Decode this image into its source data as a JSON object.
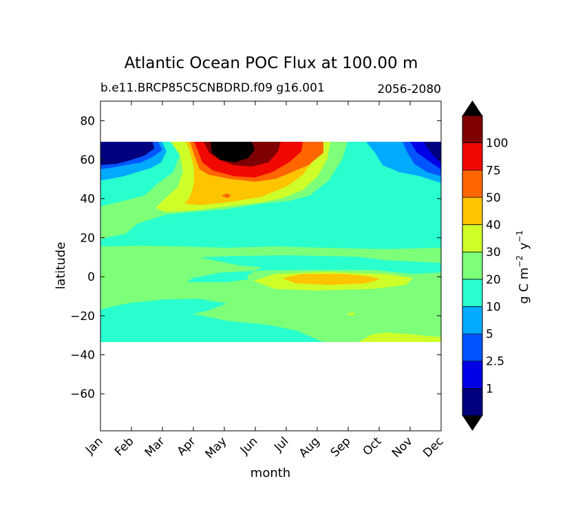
{
  "chart_data": {
    "type": "heatmap",
    "subtype": "filled-contour",
    "title": "Atlantic Ocean POC Flux at 100.00 m",
    "subtitle_left": "b.e11.BRCP85C5CNBDRD.f09 g16.001",
    "subtitle_right": "2056-2080",
    "xlabel": "month",
    "ylabel": "latitude",
    "x_ticks": [
      "Jan",
      "Feb",
      "Mar",
      "Apr",
      "May",
      "Jun",
      "Jul",
      "Aug",
      "Sep",
      "Oct",
      "Nov",
      "Dec"
    ],
    "y_ticks": [
      "80",
      "60",
      "40",
      "20",
      "0",
      "−20",
      "−40",
      "−60"
    ],
    "ylim": [
      -79,
      90
    ],
    "data_lat_range": [
      -34,
      69
    ],
    "colorbar": {
      "label": "g C m⁻² y⁻¹",
      "label_main": "g C m",
      "label_exp1": "−2",
      "label_mid": "y",
      "label_exp2": "−1",
      "levels": [
        "1",
        "2.5",
        "5",
        "10",
        "20",
        "30",
        "40",
        "50",
        "75",
        "100"
      ],
      "extend": "both",
      "colors": [
        "#00007f",
        "#0000e6",
        "#0055ff",
        "#00aaff",
        "#29ffce",
        "#7dff7a",
        "#ceff29",
        "#ffc400",
        "#ff6600",
        "#f10800",
        "#7f0000"
      ]
    },
    "bands": [
      {
        "name": "Arctic edge (~60-69N)",
        "Jan": "<1",
        "May": ">100",
        "Jun": ">100",
        "Sep": "10-20",
        "Dec": "<1"
      },
      {
        "name": "Northern mid-latitudes (~40-55N)",
        "Apr": "20-40",
        "May": "40-50",
        "Jul": "40-75",
        "Oct": "10-20"
      },
      {
        "name": "Subtropics (~15-35N)",
        "all_months": "10-20"
      },
      {
        "name": "Equatorial band (~-15-15)",
        "all_months": "20-30",
        "Aug": "30-50",
        "Sep": "30-50"
      },
      {
        "name": "South Atlantic (~-15 to -34)",
        "Jan": "20-30",
        "Mar": "10-20",
        "Jul": "10-20",
        "Nov": "20-40"
      }
    ],
    "grid": false
  }
}
